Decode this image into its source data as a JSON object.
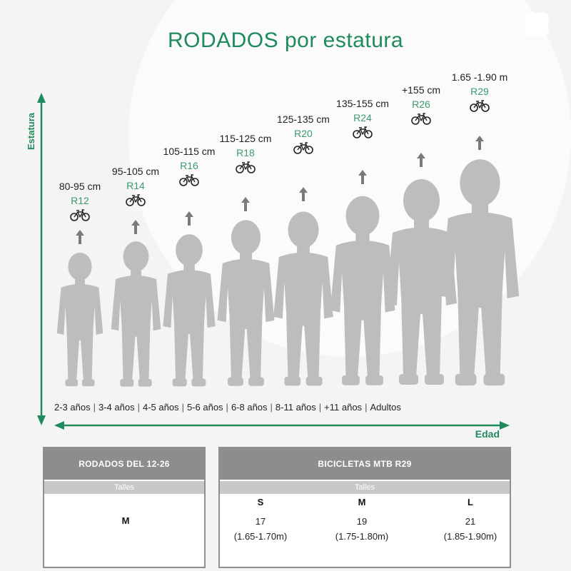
{
  "title": "RODADOS por estatura",
  "y_axis_label": "Estatura",
  "x_axis_label": "Edad",
  "icons": {
    "bike": "bicycle-icon",
    "arrow": "arrow-up-icon",
    "person": "person-silhouette-icon",
    "logo": "corner-logo-icon"
  },
  "colors": {
    "accent": "#1f8a5b",
    "rim": "#3b9b6c",
    "silhouette": "#bdbdbd",
    "table_header": "#8d8d8d",
    "table_subheader": "#c8c8c8"
  },
  "groups": [
    {
      "height": "80-95 cm",
      "rim": "R12",
      "age": "2-3 años"
    },
    {
      "height": "95-105 cm",
      "rim": "R14",
      "age": "3-4 años"
    },
    {
      "height": "105-115 cm",
      "rim": "R16",
      "age": "4-5 años"
    },
    {
      "height": "115-125 cm",
      "rim": "R18",
      "age": "5-6 años"
    },
    {
      "height": "125-135 cm",
      "rim": "R20",
      "age": "6-8 años"
    },
    {
      "height": "135-155 cm",
      "rim": "R24",
      "age": "8-11 años"
    },
    {
      "height": "+155 cm",
      "rim": "R26",
      "age": "+11 años"
    },
    {
      "height": "1.65 -1.90 m",
      "rim": "R29",
      "age": "Adultos"
    }
  ],
  "age_separator": "|",
  "table_left": {
    "header": "RODADOS DEL 12-26",
    "subheader": "Talles",
    "size": "M"
  },
  "table_right": {
    "header": "BICICLETAS MTB R29",
    "subheader": "Talles",
    "sizes": [
      {
        "size": "S",
        "number": "17",
        "range": "(1.65-1.70m)"
      },
      {
        "size": "M",
        "number": "19",
        "range": "(1.75-1.80m)"
      },
      {
        "size": "L",
        "number": "21",
        "range": "(1.85-1.90m)"
      }
    ]
  }
}
